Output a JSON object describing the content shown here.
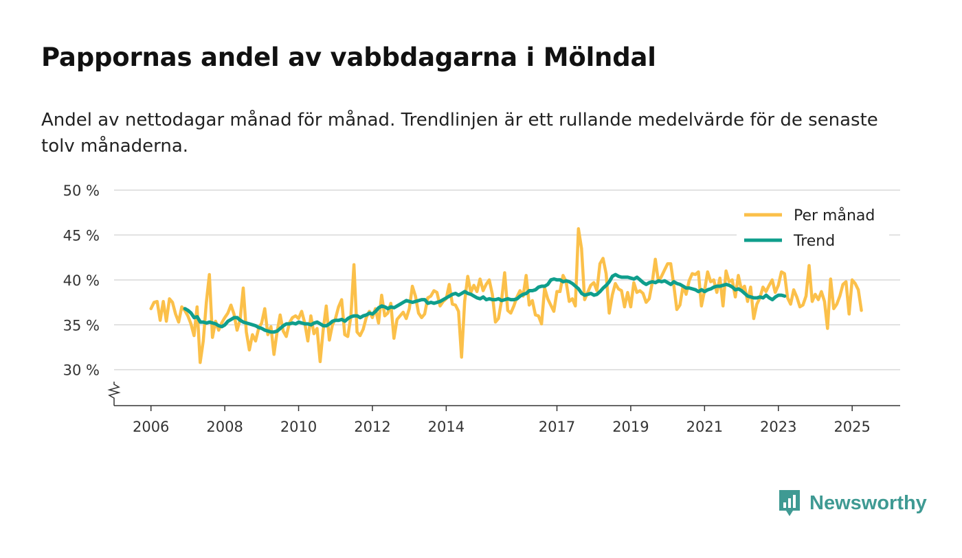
{
  "header": {
    "title": "Pappornas andel av vabbdagarna i Mölndal",
    "subtitle": "Andel av nettodagar månad för månad. Trendlinjen är ett rullande medelvärde för de senaste tolv månaderna."
  },
  "brand": {
    "name": "Newsworthy",
    "icon": "newsworthy-logo-icon",
    "color": "#3f9a93"
  },
  "colors": {
    "monthly": "#fbc04a",
    "trend": "#0f9e8c",
    "grid": "#d8d8d8",
    "axis": "#333333"
  },
  "chart_data": {
    "type": "line",
    "title": "Pappornas andel av vabbdagarna i Mölndal",
    "subtitle": "Andel av nettodagar månad för månad. Trendlinjen är ett rullande medelvärde för de senaste tolv månaderna.",
    "xlabel": "",
    "ylabel": "",
    "ylim": [
      26,
      50
    ],
    "yticks": [
      30,
      35,
      40,
      45,
      50
    ],
    "ytick_labels": [
      "30 %",
      "35 %",
      "40 %",
      "45 %",
      "50 %"
    ],
    "xlim": [
      2005.0,
      2026.3
    ],
    "xticks": [
      2006,
      2008,
      2010,
      2012,
      2014,
      2017,
      2019,
      2021,
      2023,
      2025
    ],
    "xtick_labels": [
      "2006",
      "2008",
      "2010",
      "2012",
      "2014",
      "2017",
      "2019",
      "2021",
      "2023",
      "2025"
    ],
    "grid": true,
    "legend_position": "top-right",
    "series": [
      {
        "name": "Per månad",
        "color": "#fbc04a",
        "start": 2006.0,
        "step": 0.08333,
        "values": [
          36.8,
          37.5,
          37.6,
          35.5,
          37.6,
          35.4,
          37.9,
          37.5,
          36.2,
          35.3,
          37.0,
          36.6,
          36.0,
          35.1,
          33.8,
          37.0,
          30.8,
          33.2,
          37.5,
          40.6,
          33.6,
          35.4,
          34.4,
          35.2,
          35.8,
          36.3,
          37.2,
          36.2,
          34.4,
          35.6,
          39.1,
          34.2,
          32.2,
          33.9,
          33.2,
          34.6,
          35.2,
          36.8,
          33.9,
          34.8,
          31.7,
          34.2,
          36.1,
          34.3,
          33.7,
          35.2,
          35.8,
          36.0,
          35.7,
          36.5,
          35.2,
          33.2,
          36.0,
          34.0,
          34.6,
          30.9,
          34.4,
          37.1,
          33.3,
          35.0,
          35.7,
          37.0,
          37.8,
          33.9,
          33.7,
          35.9,
          41.7,
          34.2,
          33.8,
          34.5,
          35.8,
          36.5,
          35.8,
          36.8,
          35.2,
          38.3,
          36.0,
          36.3,
          37.4,
          33.5,
          35.6,
          36.0,
          36.4,
          35.7,
          36.8,
          39.3,
          38.2,
          36.3,
          35.8,
          36.2,
          38.0,
          38.2,
          38.8,
          38.6,
          37.1,
          37.6,
          37.9,
          39.5,
          37.3,
          37.2,
          36.5,
          31.4,
          37.6,
          40.4,
          38.6,
          39.4,
          38.7,
          40.1,
          38.8,
          39.5,
          40.0,
          38.4,
          35.3,
          35.7,
          37.7,
          40.8,
          36.6,
          36.3,
          37.1,
          38.1,
          38.8,
          38.2,
          40.5,
          37.2,
          37.7,
          36.1,
          36.0,
          35.1,
          39.1,
          37.9,
          37.2,
          36.5,
          38.7,
          38.7,
          40.5,
          39.8,
          37.6,
          37.9,
          37.1,
          45.7,
          43.5,
          37.8,
          38.6,
          39.4,
          39.7,
          38.8,
          41.8,
          42.4,
          40.7,
          36.3,
          38.3,
          39.6,
          39.0,
          38.8,
          37.0,
          38.6,
          37.0,
          39.7,
          38.6,
          38.8,
          38.5,
          37.5,
          37.9,
          39.7,
          42.3,
          39.8,
          40.4,
          41.1,
          41.8,
          41.8,
          39.4,
          36.7,
          37.2,
          39.3,
          38.4,
          39.9,
          40.7,
          40.6,
          40.9,
          37.1,
          38.8,
          40.9,
          39.8,
          40.0,
          38.6,
          40.2,
          37.1,
          41.0,
          39.8,
          40.0,
          38.1,
          40.5,
          38.9,
          39.3,
          37.6,
          39.2,
          35.7,
          37.3,
          38.0,
          39.2,
          38.7,
          39.4,
          40.0,
          38.6,
          39.4,
          40.9,
          40.7,
          38.0,
          37.3,
          38.9,
          38.1,
          37.0,
          37.2,
          38.2,
          41.6,
          37.6,
          38.4,
          37.8,
          38.7,
          37.6,
          34.6,
          40.1,
          36.8,
          37.3,
          38.2,
          39.5,
          39.8,
          36.2,
          40.0,
          39.6,
          38.9,
          36.6
        ]
      },
      {
        "name": "Trend",
        "color": "#0f9e8c",
        "start": 2006.92,
        "step": 0.08333,
        "values": [
          36.8,
          36.6,
          36.3,
          35.8,
          35.9,
          35.3,
          35.3,
          35.2,
          35.3,
          35.2,
          35.1,
          34.9,
          34.8,
          35.0,
          35.4,
          35.6,
          35.8,
          35.8,
          35.5,
          35.3,
          35.2,
          35.1,
          35.0,
          34.9,
          34.7,
          34.6,
          34.4,
          34.3,
          34.2,
          34.2,
          34.3,
          34.6,
          34.9,
          35.1,
          35.1,
          35.2,
          35.1,
          35.3,
          35.2,
          35.1,
          35.1,
          35.0,
          35.2,
          35.3,
          35.1,
          34.9,
          34.9,
          35.1,
          35.4,
          35.5,
          35.5,
          35.6,
          35.4,
          35.7,
          35.9,
          36.0,
          36.0,
          35.8,
          36.0,
          36.1,
          36.3,
          36.2,
          36.5,
          36.9,
          37.1,
          37.0,
          36.8,
          37.0,
          36.9,
          37.1,
          37.3,
          37.5,
          37.7,
          37.6,
          37.5,
          37.6,
          37.7,
          37.8,
          37.8,
          37.4,
          37.5,
          37.4,
          37.5,
          37.6,
          37.8,
          38.0,
          38.2,
          38.4,
          38.5,
          38.3,
          38.5,
          38.7,
          38.5,
          38.4,
          38.2,
          38.0,
          37.9,
          38.1,
          37.8,
          37.9,
          37.8,
          37.8,
          37.9,
          37.7,
          37.8,
          37.9,
          37.8,
          37.8,
          37.9,
          38.2,
          38.4,
          38.5,
          38.8,
          38.8,
          38.9,
          39.2,
          39.3,
          39.3,
          39.5,
          40.0,
          40.1,
          40.0,
          40.0,
          39.8,
          39.9,
          39.8,
          39.6,
          39.3,
          39.0,
          38.5,
          38.3,
          38.4,
          38.5,
          38.3,
          38.4,
          38.7,
          39.1,
          39.4,
          39.8,
          40.4,
          40.6,
          40.4,
          40.3,
          40.3,
          40.3,
          40.2,
          40.1,
          40.3,
          40.0,
          39.7,
          39.5,
          39.7,
          39.8,
          39.7,
          39.9,
          39.8,
          39.9,
          39.7,
          39.5,
          39.8,
          39.6,
          39.5,
          39.3,
          39.1,
          39.1,
          39.0,
          38.9,
          38.7,
          38.9,
          38.7,
          38.9,
          39.0,
          39.2,
          39.3,
          39.3,
          39.4,
          39.5,
          39.4,
          39.2,
          38.9,
          39.0,
          38.8,
          38.5,
          38.2,
          38.1,
          38.0,
          38.0,
          38.1,
          38.0,
          38.3,
          38.0,
          37.8,
          38.1,
          38.3,
          38.3,
          38.2
        ]
      }
    ]
  }
}
